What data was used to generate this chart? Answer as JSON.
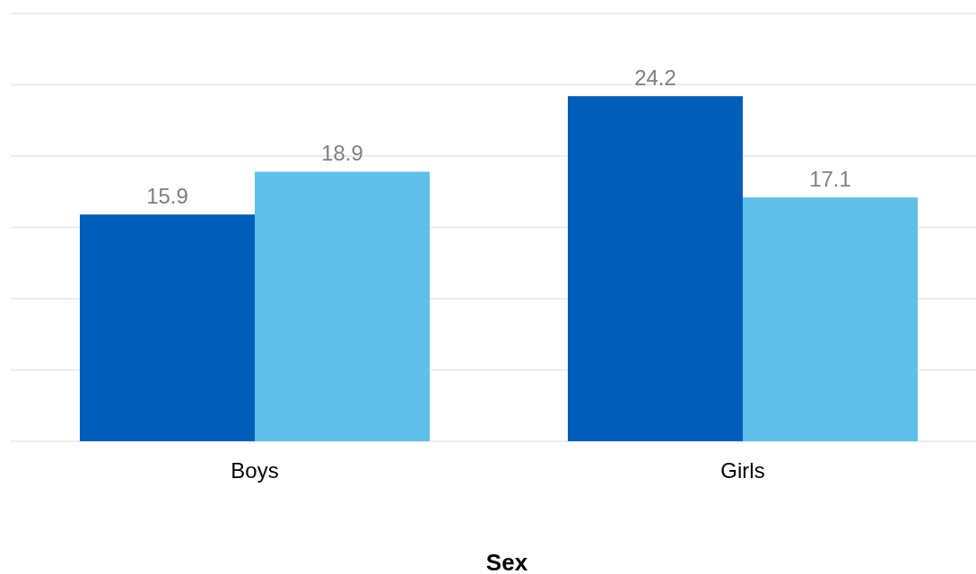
{
  "chart_data": {
    "type": "bar",
    "xlabel": "Sex",
    "categories": [
      "Boys",
      "Girls"
    ],
    "series": [
      {
        "color": "#005eb8",
        "values": [
          15.9,
          24.2
        ]
      },
      {
        "color": "#5fc1ea",
        "values": [
          18.9,
          17.1
        ]
      }
    ],
    "ylim": [
      0,
      30
    ],
    "yticks": [
      {
        "value": 0,
        "label": null
      },
      {
        "value": 5,
        "label": null
      },
      {
        "value": 10,
        "label": null
      },
      {
        "value": 15,
        "label": null
      },
      {
        "value": 20,
        "label": null
      },
      {
        "value": 25,
        "label": null
      },
      {
        "value": 30,
        "label": null
      }
    ],
    "grid": "y",
    "tick_labels": "x",
    "data_labels": true
  }
}
